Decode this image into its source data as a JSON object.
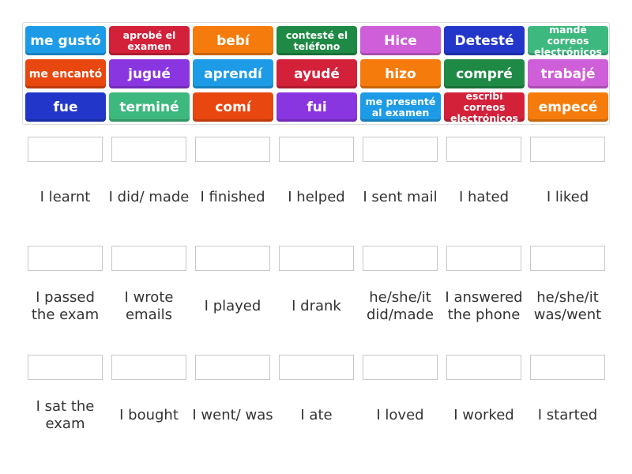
{
  "colors": {
    "blue": "#1e9be6",
    "red": "#d4213a",
    "orange": "#f57c0c",
    "green": "#1f8a45",
    "magenta": "#cf5fd8",
    "darkblue": "#2237c9",
    "teal": "#3db87e",
    "orangered": "#e8470f",
    "purple": "#8a36e0"
  },
  "tiles": [
    {
      "text": "me gustó",
      "color": "blue",
      "size": "big"
    },
    {
      "text": "aprobé el examen",
      "color": "red",
      "size": "small"
    },
    {
      "text": "bebí",
      "color": "orange",
      "size": "big"
    },
    {
      "text": "contesté el teléfono",
      "color": "green",
      "size": "small"
    },
    {
      "text": "Hice",
      "color": "magenta",
      "size": "big"
    },
    {
      "text": "Detesté",
      "color": "darkblue",
      "size": "big"
    },
    {
      "text": "mandé correos electrónicos",
      "color": "teal",
      "size": "small"
    },
    {
      "text": "me encantó",
      "color": "orangered",
      "size": "small2"
    },
    {
      "text": "jugué",
      "color": "purple",
      "size": "big"
    },
    {
      "text": "aprendí",
      "color": "blue",
      "size": "big"
    },
    {
      "text": "ayudé",
      "color": "red",
      "size": "big"
    },
    {
      "text": "hizo",
      "color": "orange",
      "size": "big"
    },
    {
      "text": "compré",
      "color": "green",
      "size": "big"
    },
    {
      "text": "trabajé",
      "color": "magenta",
      "size": "big"
    },
    {
      "text": "fue",
      "color": "darkblue",
      "size": "big"
    },
    {
      "text": "terminé",
      "color": "teal",
      "size": "big"
    },
    {
      "text": "comí",
      "color": "orangered",
      "size": "big"
    },
    {
      "text": "fui",
      "color": "purple",
      "size": "big"
    },
    {
      "text": "me presenté al examen",
      "color": "blue",
      "size": "small"
    },
    {
      "text": "escribí correos electrónicos",
      "color": "red",
      "size": "small"
    },
    {
      "text": "empecé",
      "color": "orange",
      "size": "big"
    }
  ],
  "targets": [
    "I learnt",
    "I did/ made",
    "I finished",
    "I helped",
    "I sent mail",
    "I hated",
    "I liked",
    "I passed the exam",
    "I wrote emails",
    "I played",
    "I drank",
    "he/she/it did/made",
    "I answered the phone",
    "he/she/it was/went",
    "I sat the exam",
    "I bought",
    "I went/ was",
    "I ate",
    "I loved",
    "I worked",
    "I started"
  ]
}
